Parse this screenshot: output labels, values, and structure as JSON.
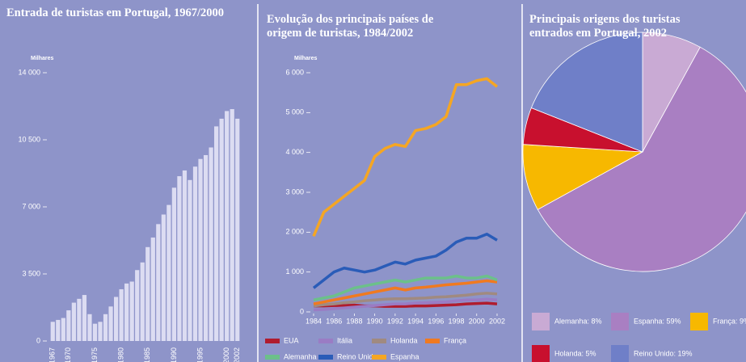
{
  "chart_data": [
    {
      "type": "bar",
      "title": "Entrada de turistas em Portugal, 1967/2000",
      "y_label": "Milhares",
      "color": "#dcdcf2",
      "categories": [
        "1967",
        null,
        null,
        "1970",
        null,
        null,
        null,
        null,
        "1975",
        null,
        null,
        null,
        null,
        "1980",
        null,
        null,
        null,
        null,
        "1985",
        null,
        null,
        null,
        null,
        "1990",
        null,
        null,
        null,
        null,
        "1995",
        null,
        null,
        null,
        null,
        "2000",
        null,
        "2002"
      ],
      "values": [
        1000,
        1100,
        1200,
        1600,
        2000,
        2200,
        2400,
        1400,
        900,
        1000,
        1400,
        1800,
        2300,
        2700,
        3000,
        3100,
        3700,
        4100,
        4900,
        5400,
        6100,
        6600,
        7100,
        8000,
        8600,
        8900,
        8400,
        9100,
        9500,
        9700,
        10100,
        11200,
        11600,
        12000,
        12100,
        11600
      ],
      "ylim": [
        0,
        14000
      ],
      "yticks": [
        0,
        {
          "value": 3500,
          "label": "3 500"
        },
        {
          "value": 7000,
          "label": "7 000"
        },
        {
          "value": 10500,
          "label": "10 500"
        },
        {
          "value": 14000,
          "label": "14 000"
        }
      ]
    },
    {
      "type": "line",
      "title": "Evolução dos principais países de origem de turistas, 1984/2002",
      "y_label": "Milhares",
      "x": [
        1984,
        1985,
        1986,
        1987,
        1988,
        1989,
        1990,
        1991,
        1992,
        1993,
        1994,
        1995,
        1996,
        1997,
        1998,
        1999,
        2000,
        2001,
        2002
      ],
      "xlim": [
        1984,
        2002
      ],
      "xticks": [
        1984,
        1986,
        1988,
        1990,
        1992,
        1994,
        1996,
        1998,
        2000,
        2002
      ],
      "ylim": [
        0,
        6000
      ],
      "yticks": [
        0,
        {
          "value": 1000,
          "label": "1 000"
        },
        {
          "value": 2000,
          "label": "2 000"
        },
        {
          "value": 3000,
          "label": "3 000"
        },
        {
          "value": 4000,
          "label": "4 000"
        },
        {
          "value": 5000,
          "label": "5 000"
        },
        {
          "value": 6000,
          "label": "6 000"
        }
      ],
      "series": [
        {
          "name": "EUA",
          "color": "#b01c2e",
          "values": [
            150,
            150,
            160,
            160,
            170,
            150,
            150,
            140,
            140,
            140,
            150,
            150,
            160,
            170,
            180,
            200,
            210,
            220,
            200
          ]
        },
        {
          "name": "Itália",
          "color": "#9a7cc4",
          "values": [
            50,
            60,
            80,
            100,
            120,
            140,
            160,
            180,
            200,
            200,
            220,
            230,
            240,
            250,
            280,
            300,
            300,
            320,
            300
          ]
        },
        {
          "name": "Holanda",
          "color": "#a08a80",
          "values": [
            150,
            180,
            200,
            230,
            250,
            280,
            300,
            320,
            330,
            330,
            340,
            350,
            370,
            380,
            400,
            420,
            450,
            470,
            450
          ]
        },
        {
          "name": "França",
          "color": "#f07a20",
          "values": [
            200,
            250,
            300,
            350,
            400,
            450,
            500,
            550,
            600,
            550,
            600,
            620,
            650,
            680,
            700,
            720,
            750,
            780,
            750
          ]
        },
        {
          "name": "Alemanha",
          "color": "#6cc08a",
          "values": [
            300,
            350,
            400,
            500,
            600,
            650,
            700,
            750,
            800,
            750,
            800,
            850,
            850,
            850,
            900,
            850,
            850,
            900,
            800
          ]
        },
        {
          "name": "Reino Unido",
          "color": "#2a5cb8",
          "values": [
            600,
            800,
            1000,
            1100,
            1050,
            1000,
            1050,
            1150,
            1250,
            1200,
            1300,
            1350,
            1400,
            1550,
            1750,
            1850,
            1850,
            1950,
            1800
          ]
        },
        {
          "name": "Espanha",
          "color": "#f5a623",
          "values": [
            1900,
            2500,
            2700,
            2900,
            3100,
            3300,
            3900,
            4100,
            4200,
            4150,
            4550,
            4600,
            4700,
            4900,
            5700,
            5700,
            5800,
            5850,
            5650
          ]
        }
      ]
    },
    {
      "type": "pie",
      "title": "Principais origens dos turistas entrados em Portugal, 2002",
      "values": [
        8,
        59,
        9,
        5,
        19
      ],
      "value_labels": [
        "Alemanha: 8%",
        "Espanha: 59%",
        "França: 9%",
        "Holanda: 5%",
        "Reino Unido: 19%"
      ],
      "colors": [
        "#c9aad4",
        "#a97fc2",
        "#f7b800",
        "#c8102e",
        "#6f7fc8"
      ]
    }
  ]
}
